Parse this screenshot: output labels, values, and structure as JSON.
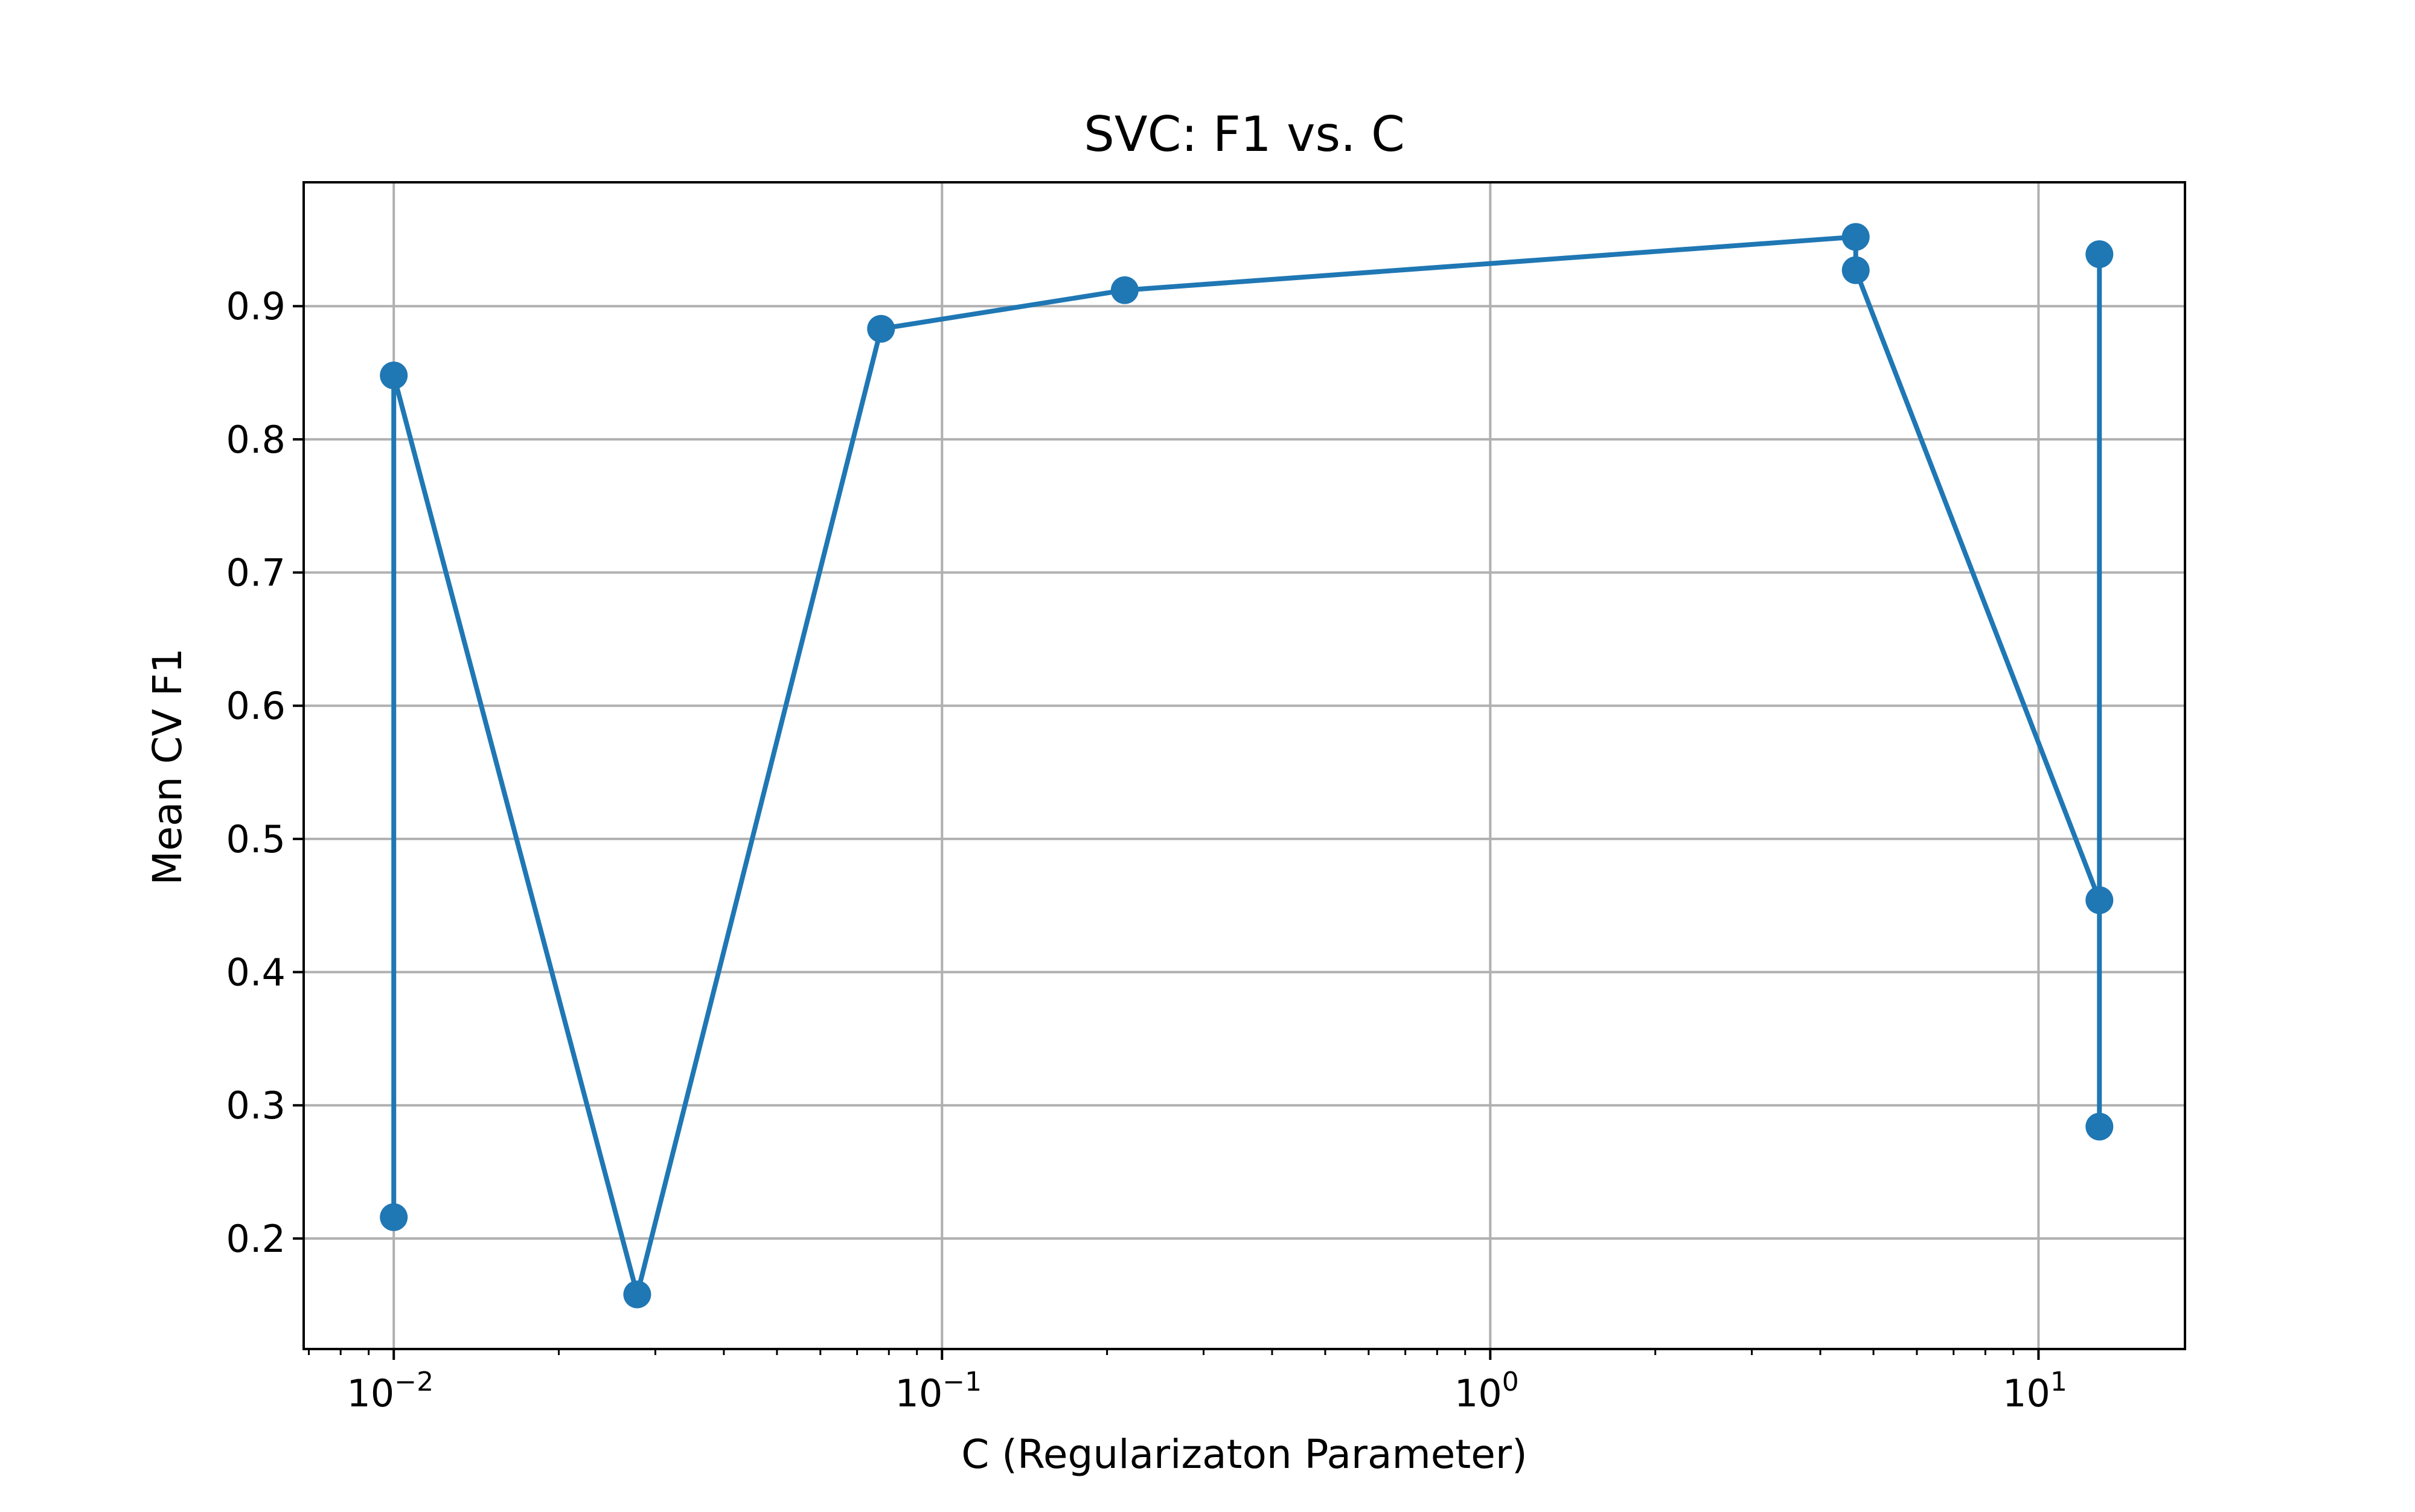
{
  "chart_data": {
    "type": "line",
    "title": "SVC: F1 vs. C",
    "xlabel": "C (Regularizaton Parameter)",
    "ylabel": "Mean CV F1",
    "xscale": "log",
    "xlim": [
      0.00685,
      18.5
    ],
    "ylim": [
      0.117,
      0.993
    ],
    "grid": true,
    "series": [
      {
        "color": "#1f77b4",
        "x": [
          0.01,
          0.01,
          0.0278,
          0.0774,
          0.2154,
          4.6416,
          4.6416,
          12.9155,
          12.9155,
          12.9155
        ],
        "y": [
          0.216,
          0.848,
          0.158,
          0.883,
          0.912,
          0.952,
          0.927,
          0.454,
          0.284,
          0.939
        ]
      }
    ],
    "xticks": [
      {
        "value": 0.01,
        "base": "10",
        "exp": "−2"
      },
      {
        "value": 0.1,
        "base": "10",
        "exp": "−1"
      },
      {
        "value": 1,
        "base": "10",
        "exp": "0"
      },
      {
        "value": 10,
        "base": "10",
        "exp": "1"
      }
    ],
    "yticks": [
      {
        "value": 0.2,
        "label": "0.2"
      },
      {
        "value": 0.3,
        "label": "0.3"
      },
      {
        "value": 0.4,
        "label": "0.4"
      },
      {
        "value": 0.5,
        "label": "0.5"
      },
      {
        "value": 0.6,
        "label": "0.6"
      },
      {
        "value": 0.7,
        "label": "0.7"
      },
      {
        "value": 0.8,
        "label": "0.8"
      },
      {
        "value": 0.9,
        "label": "0.9"
      }
    ]
  }
}
